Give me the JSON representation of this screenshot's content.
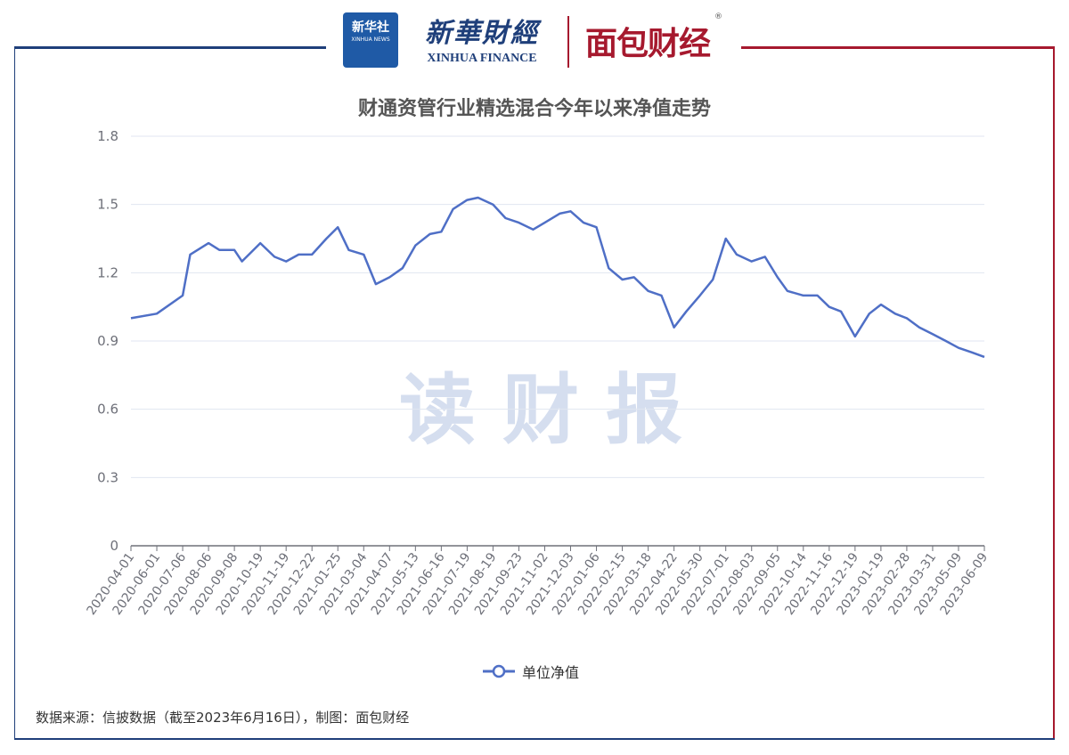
{
  "header": {
    "xinhua_badge_cn": "新华社",
    "xinhua_badge_en": "XINHUA NEWS",
    "xinhua_finance_cn": "新華財經",
    "xinhua_finance_en": "XINHUA FINANCE",
    "mianbao_brand": "面包财经",
    "registered_mark": "®"
  },
  "watermark": "读财报",
  "source_note": "数据来源：信披数据（截至2023年6月16日），制图：面包财经",
  "colors": {
    "line": "#4f6fc6",
    "frame_blue": "#1f3f7a",
    "frame_red": "#a6192e",
    "grid": "#e0e6f1"
  },
  "chart_data": {
    "type": "line",
    "title": "财通资管行业精选混合今年以来净值走势",
    "xlabel": "",
    "ylabel": "",
    "ylim": [
      0,
      1.8
    ],
    "yticks": [
      "0",
      "0.3",
      "0.6",
      "0.9",
      "1.2",
      "1.5",
      "1.8"
    ],
    "grid": true,
    "legend_position": "bottom-center",
    "x_tick_labels": [
      "2020-04-01",
      "2020-06-01",
      "2020-07-06",
      "2020-08-06",
      "2020-09-08",
      "2020-10-19",
      "2020-11-19",
      "2020-12-22",
      "2021-01-25",
      "2021-03-04",
      "2021-04-07",
      "2021-05-13",
      "2021-06-16",
      "2021-07-19",
      "2021-08-19",
      "2021-09-23",
      "2021-11-02",
      "2021-12-03",
      "2022-01-06",
      "2022-02-15",
      "2022-03-18",
      "2022-04-22",
      "2022-05-30",
      "2022-07-01",
      "2022-08-03",
      "2022-09-05",
      "2022-10-14",
      "2022-11-16",
      "2022-12-19",
      "2023-01-19",
      "2023-02-28",
      "2023-03-31",
      "2023-05-09",
      "2023-06-09"
    ],
    "series": [
      {
        "name": "单位净值",
        "x": [
          "2020-04-01",
          "2020-06-01",
          "2020-07-06",
          "2020-07-15",
          "2020-08-06",
          "2020-08-20",
          "2020-09-08",
          "2020-09-20",
          "2020-10-19",
          "2020-11-05",
          "2020-11-19",
          "2020-12-05",
          "2020-12-22",
          "2021-01-10",
          "2021-01-25",
          "2021-02-10",
          "2021-03-04",
          "2021-03-20",
          "2021-04-07",
          "2021-04-25",
          "2021-05-13",
          "2021-06-01",
          "2021-06-16",
          "2021-07-01",
          "2021-07-19",
          "2021-08-01",
          "2021-08-19",
          "2021-09-05",
          "2021-09-23",
          "2021-10-15",
          "2021-11-02",
          "2021-11-20",
          "2021-12-03",
          "2021-12-20",
          "2022-01-06",
          "2022-01-25",
          "2022-02-15",
          "2022-03-01",
          "2022-03-18",
          "2022-04-05",
          "2022-04-22",
          "2022-05-10",
          "2022-05-30",
          "2022-06-15",
          "2022-07-01",
          "2022-07-15",
          "2022-08-03",
          "2022-08-20",
          "2022-09-05",
          "2022-09-20",
          "2022-10-14",
          "2022-11-01",
          "2022-11-16",
          "2022-12-01",
          "2022-12-19",
          "2023-01-05",
          "2023-01-19",
          "2023-02-10",
          "2023-02-28",
          "2023-03-15",
          "2023-03-31",
          "2023-04-20",
          "2023-05-09",
          "2023-05-25",
          "2023-06-09"
        ],
        "values": [
          1.0,
          1.02,
          1.1,
          1.28,
          1.33,
          1.3,
          1.3,
          1.25,
          1.33,
          1.27,
          1.25,
          1.28,
          1.28,
          1.35,
          1.4,
          1.3,
          1.28,
          1.15,
          1.18,
          1.22,
          1.32,
          1.37,
          1.38,
          1.48,
          1.52,
          1.53,
          1.5,
          1.44,
          1.42,
          1.39,
          1.42,
          1.46,
          1.47,
          1.42,
          1.4,
          1.22,
          1.17,
          1.18,
          1.12,
          1.1,
          0.96,
          1.03,
          1.1,
          1.17,
          1.35,
          1.28,
          1.25,
          1.27,
          1.18,
          1.12,
          1.1,
          1.1,
          1.05,
          1.03,
          0.92,
          1.02,
          1.06,
          1.02,
          1.0,
          0.96,
          0.93,
          0.9,
          0.87,
          0.85,
          0.83
        ]
      }
    ]
  }
}
